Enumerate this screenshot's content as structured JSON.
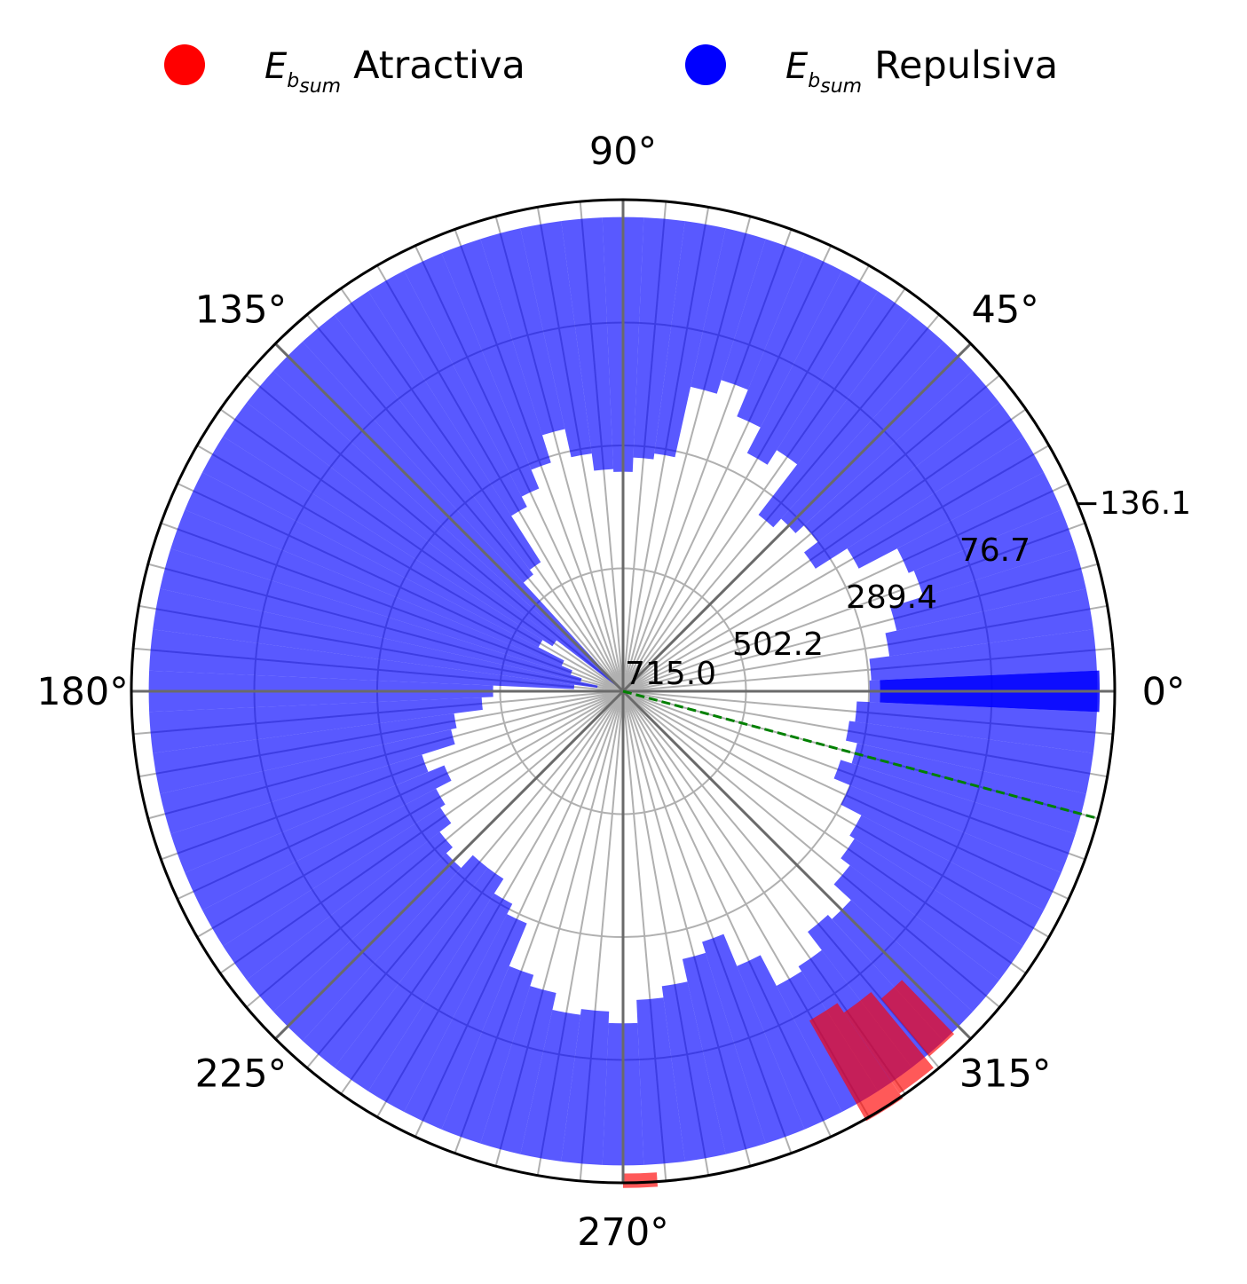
{
  "chart_data": {
    "type": "polar-bar",
    "title": "",
    "legend": {
      "placement": "top",
      "entries": [
        {
          "symbol": "E",
          "subscript": "b",
          "subsubscript": "sum",
          "label": "Atractiva",
          "color": "#ff0000"
        },
        {
          "symbol": "E",
          "subscript": "b",
          "subsubscript": "sum",
          "label": "Repulsiva",
          "color": "#0000ff"
        }
      ]
    },
    "angle_ticks": [
      "0°",
      "45°",
      "90°",
      "135°",
      "180°",
      "225°",
      "270°",
      "315°"
    ],
    "radial_ticks": [
      "715.0",
      "502.2",
      "289.4",
      "76.7",
      "−136.1"
    ],
    "radial_axis": {
      "inverted": true,
      "center_value": 715.0,
      "outer_value": -136.1,
      "grid_values": [
        715.0,
        502.2,
        289.4,
        76.7,
        -136.1
      ]
    },
    "bin_width_deg": 5,
    "bars": {
      "angles_deg": [
        0,
        5,
        10,
        15,
        20,
        25,
        30,
        35,
        40,
        45,
        50,
        55,
        60,
        65,
        70,
        75,
        80,
        85,
        90,
        95,
        100,
        105,
        110,
        115,
        120,
        125,
        130,
        135,
        140,
        145,
        150,
        155,
        160,
        165,
        170,
        175,
        180,
        185,
        190,
        195,
        200,
        205,
        210,
        215,
        220,
        225,
        230,
        235,
        240,
        245,
        250,
        255,
        260,
        265,
        270,
        275,
        280,
        285,
        290,
        295,
        300,
        305,
        310,
        315,
        320,
        325,
        330,
        335,
        340,
        345,
        350,
        355
      ],
      "values": [
        -106,
        -106,
        -106,
        -106,
        -106,
        -106,
        -106,
        -106,
        -106,
        -106,
        -106,
        -106,
        -106,
        -106,
        -106,
        -106,
        -106,
        -106,
        -106,
        -106,
        -106,
        -106,
        -106,
        -106,
        -106,
        -106,
        -106,
        -106,
        -106,
        -106,
        -106,
        -106,
        -106,
        -106,
        -106,
        -106,
        -106,
        -106,
        -106,
        -106,
        -106,
        -106,
        -106,
        -106,
        -106,
        -106,
        -106,
        -106,
        -106,
        -106,
        -106,
        -106,
        -106,
        -106,
        -106,
        -106,
        -106,
        -106,
        -106,
        -106,
        -106,
        -106,
        -106,
        -106,
        -106,
        -106,
        -106,
        -106,
        -106,
        -106,
        -106,
        -106
      ],
      "inner_values": [
        288,
        285,
        250,
        230,
        170,
        180,
        255,
        320,
        290,
        310,
        330,
        220,
        250,
        200,
        150,
        175,
        300,
        310,
        335,
        330,
        300,
        250,
        300,
        335,
        355,
        450,
        460,
        700,
        700,
        570,
        550,
        600,
        620,
        640,
        670,
        630,
        490,
        470,
        420,
        410,
        350,
        380,
        350,
        340,
        315,
        300,
        330,
        330,
        300,
        280,
        200,
        180,
        150,
        160,
        140,
        180,
        200,
        240,
        260,
        200,
        140,
        150,
        190,
        180,
        220,
        240,
        250,
        290,
        320,
        300,
        320,
        310
      ],
      "types": [
        "repulsiva",
        "repulsiva",
        "repulsiva",
        "repulsiva",
        "repulsiva",
        "repulsiva",
        "repulsiva",
        "repulsiva",
        "repulsiva",
        "repulsiva",
        "repulsiva",
        "repulsiva",
        "repulsiva",
        "repulsiva",
        "repulsiva",
        "repulsiva",
        "repulsiva",
        "repulsiva",
        "repulsiva",
        "repulsiva",
        "repulsiva",
        "repulsiva",
        "repulsiva",
        "repulsiva",
        "repulsiva",
        "repulsiva",
        "repulsiva",
        "repulsiva",
        "repulsiva",
        "repulsiva",
        "repulsiva",
        "repulsiva",
        "repulsiva",
        "repulsiva",
        "repulsiva",
        "repulsiva",
        "repulsiva",
        "repulsiva",
        "repulsiva",
        "repulsiva",
        "repulsiva",
        "repulsiva",
        "repulsiva",
        "repulsiva",
        "repulsiva",
        "repulsiva",
        "repulsiva",
        "repulsiva",
        "repulsiva",
        "repulsiva",
        "repulsiva",
        "repulsiva",
        "repulsiva",
        "repulsiva",
        "repulsiva",
        "repulsiva",
        "repulsiva",
        "repulsiva",
        "repulsiva",
        "repulsiva",
        "repulsiva",
        "repulsiva",
        "repulsiva",
        "repulsiva",
        "repulsiva",
        "repulsiva",
        "repulsiva",
        "repulsiva",
        "repulsiva",
        "repulsiva",
        "repulsiva",
        "repulsiva"
      ]
    },
    "extra_bars": [
      {
        "angle_deg": 0,
        "width_deg": 5,
        "inner_value": 270,
        "outer_value": -110,
        "color": "#0000ff",
        "opacity": 0.85
      },
      {
        "angle_deg": 272,
        "width_deg": 4,
        "inner_value": -120,
        "outer_value": -145,
        "color": "#ff0000",
        "opacity": 0.65
      },
      {
        "angle_deg": 302,
        "width_deg": 5,
        "inner_value": 60,
        "outer_value": -140,
        "color": "#ff0000",
        "opacity": 0.65
      },
      {
        "angle_deg": 307,
        "width_deg": 5,
        "inner_value": 40,
        "outer_value": -130,
        "color": "#ff0000",
        "opacity": 0.65
      },
      {
        "angle_deg": 312,
        "width_deg": 4,
        "inner_value": 20,
        "outer_value": -110,
        "color": "#ff0000",
        "opacity": 0.65
      }
    ],
    "reference_line": {
      "angle_deg": -15,
      "color": "#008000",
      "style": "dashed"
    },
    "grid": true
  }
}
